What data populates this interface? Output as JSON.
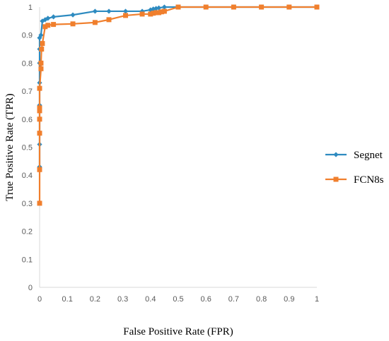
{
  "chart_data": {
    "type": "line",
    "title": "",
    "xlabel": "False Positive Rate (FPR)",
    "ylabel": "True Positive Rate (TPR)",
    "xlim": [
      0,
      1
    ],
    "ylim": [
      0,
      1
    ],
    "xticks": [
      "0",
      "0.1",
      "0.2",
      "0.3",
      "0.4",
      "0.5",
      "0.6",
      "0.7",
      "0.8",
      "0.9",
      "1"
    ],
    "yticks": [
      "0",
      "0.1",
      "0.2",
      "0.3",
      "0.4",
      "0.5",
      "0.6",
      "0.7",
      "0.8",
      "0.9",
      "1"
    ],
    "grid": false,
    "legend": "right",
    "series": [
      {
        "name": "Segnet",
        "color": "#2E8BC0",
        "marker": "diamond",
        "x": [
          0,
          0,
          0,
          0,
          0,
          0,
          0,
          0.005,
          0.01,
          0.02,
          0.03,
          0.05,
          0.12,
          0.2,
          0.25,
          0.31,
          0.37,
          0.4,
          0.41,
          0.42,
          0.43,
          0.45,
          0.5,
          0.6,
          0.7,
          0.8,
          0.9,
          1.0
        ],
        "y": [
          0.43,
          0.51,
          0.65,
          0.73,
          0.8,
          0.85,
          0.89,
          0.9,
          0.95,
          0.955,
          0.96,
          0.965,
          0.972,
          0.985,
          0.985,
          0.985,
          0.985,
          0.99,
          0.993,
          0.995,
          0.997,
          1.0,
          1.0,
          1.0,
          1.0,
          1.0,
          1.0,
          1.0
        ]
      },
      {
        "name": "FCN8s",
        "color": "#F07F2D",
        "marker": "square",
        "x": [
          0,
          0,
          0,
          0,
          0,
          0,
          0,
          0.005,
          0.005,
          0.007,
          0.01,
          0.02,
          0.03,
          0.05,
          0.12,
          0.2,
          0.25,
          0.31,
          0.37,
          0.4,
          0.41,
          0.42,
          0.43,
          0.44,
          0.45,
          0.5,
          0.6,
          0.7,
          0.8,
          0.9,
          1.0
        ],
        "y": [
          0.3,
          0.42,
          0.55,
          0.6,
          0.63,
          0.64,
          0.71,
          0.78,
          0.8,
          0.85,
          0.87,
          0.93,
          0.935,
          0.938,
          0.94,
          0.945,
          0.955,
          0.97,
          0.975,
          0.975,
          0.978,
          0.98,
          0.98,
          0.983,
          0.985,
          1.0,
          1.0,
          1.0,
          1.0,
          1.0,
          1.0
        ]
      }
    ]
  }
}
